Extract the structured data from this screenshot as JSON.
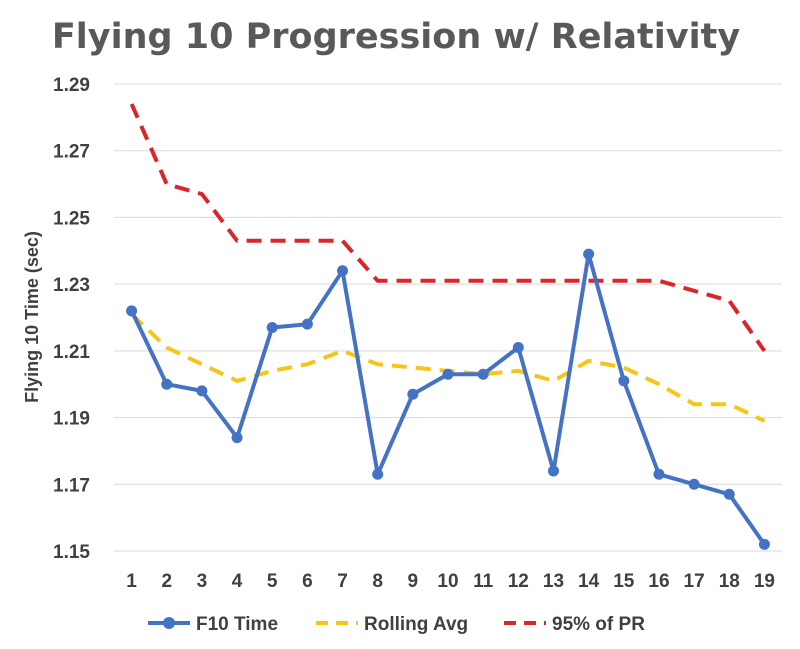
{
  "chart_data": {
    "type": "line",
    "title": "Flying 10 Progression w/ Relativity",
    "xlabel": "",
    "ylabel": "Flying 10 Time (sec)",
    "categories": [
      "1",
      "2",
      "3",
      "4",
      "5",
      "6",
      "7",
      "8",
      "9",
      "10",
      "11",
      "12",
      "13",
      "14",
      "15",
      "16",
      "17",
      "18",
      "19"
    ],
    "ylim": [
      1.15,
      1.29
    ],
    "yticks": [
      "1.15",
      "1.17",
      "1.19",
      "1.21",
      "1.23",
      "1.25",
      "1.27",
      "1.29"
    ],
    "grid": true,
    "legend_position": "bottom",
    "series": [
      {
        "name": "F10 Time",
        "style": "solid-markers",
        "color": "#4472c4",
        "values": [
          1.222,
          1.2,
          1.198,
          1.184,
          1.217,
          1.218,
          1.234,
          1.173,
          1.197,
          1.203,
          1.203,
          1.211,
          1.174,
          1.239,
          1.201,
          1.173,
          1.17,
          1.167,
          1.152
        ]
      },
      {
        "name": "Rolling Avg",
        "style": "dashed",
        "color": "#f5c518",
        "values": [
          1.221,
          1.211,
          1.206,
          1.201,
          1.204,
          1.206,
          1.21,
          1.206,
          1.205,
          1.204,
          1.203,
          1.204,
          1.201,
          1.207,
          1.205,
          1.2,
          1.194,
          1.194,
          1.189
        ]
      },
      {
        "name": "95% of PR",
        "style": "dashed",
        "color": "#d9262a",
        "values": [
          1.284,
          1.26,
          1.257,
          1.243,
          1.243,
          1.243,
          1.243,
          1.231,
          1.231,
          1.231,
          1.231,
          1.231,
          1.231,
          1.231,
          1.231,
          1.231,
          1.228,
          1.225,
          1.21
        ]
      }
    ]
  }
}
